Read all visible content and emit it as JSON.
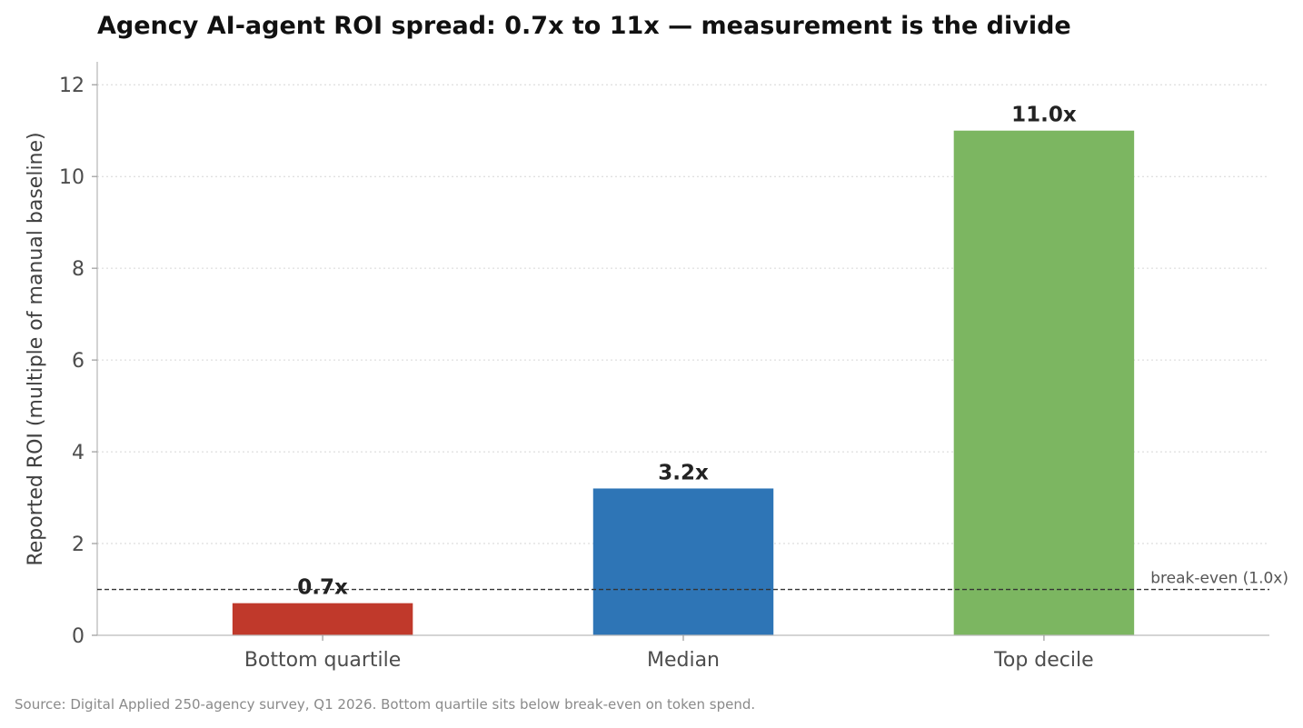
{
  "chart_data": {
    "type": "bar",
    "title": "Agency AI-agent ROI spread: 0.7x to 11x — measurement is the divide",
    "ylabel": "Reported ROI (multiple of manual baseline)",
    "xlabel": "",
    "categories": [
      "Bottom quartile",
      "Median",
      "Top decile"
    ],
    "values": [
      0.7,
      3.2,
      11.0
    ],
    "value_labels": [
      "0.7x",
      "3.2x",
      "11.0x"
    ],
    "colors": [
      "#c0392b",
      "#2e75b6",
      "#7cb661"
    ],
    "ylim": [
      0,
      12.5
    ],
    "yticks": [
      0,
      2,
      4,
      6,
      8,
      10,
      12
    ],
    "grid": "y-dotted",
    "reference_line": {
      "value": 1.0,
      "label": "break-even (1.0x)",
      "style": "dashed"
    },
    "source": "Source: Digital Applied 250-agency survey, Q1 2026. Bottom quartile sits below break-even on token spend."
  }
}
